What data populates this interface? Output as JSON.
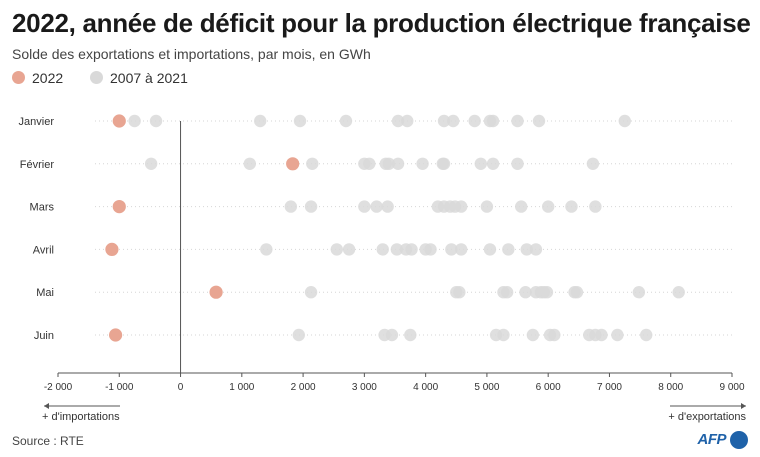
{
  "header": {
    "title": "2022, année de déficit pour la production électrique française",
    "subtitle": "Solde des exportations et importations, par mois, en GWh"
  },
  "legend": {
    "items": [
      {
        "label": "2022",
        "color": "#e8a592"
      },
      {
        "label": "2007 à 2021",
        "color": "#d9d9d9"
      }
    ]
  },
  "footer": {
    "source": "Source : RTE",
    "logo_text": "AFP"
  },
  "chart_data": {
    "type": "scatter",
    "title": "2022, année de déficit pour la production électrique française",
    "subtitle": "Solde des exportations et importations, par mois, en GWh",
    "categories": [
      "Janvier",
      "Février",
      "Mars",
      "Avril",
      "Mai",
      "Juin"
    ],
    "xlim": [
      -2000,
      9000
    ],
    "xticks": [
      -2000,
      -1000,
      0,
      1000,
      2000,
      3000,
      4000,
      5000,
      6000,
      7000,
      8000,
      9000
    ],
    "xtick_labels": [
      "-2 000",
      "-1 000",
      "0",
      "1 000",
      "2 000",
      "3 000",
      "4 000",
      "5 000",
      "6 000",
      "7 000",
      "8 000",
      "9 000"
    ],
    "x_annotation_left": "+ d'importations",
    "x_annotation_right": "+ d'exportations",
    "grid": true,
    "series": [
      {
        "name": "2007 à 2021",
        "color": "#d9d9d9",
        "values": [
          [
            -750,
            -400,
            1300,
            1950,
            2700,
            3550,
            3700,
            4300,
            4450,
            4800,
            5050,
            5100,
            5500,
            5850,
            7250
          ],
          [
            -480,
            1130,
            2150,
            3000,
            3080,
            3350,
            3400,
            3550,
            3950,
            4280,
            4300,
            4900,
            5100,
            5500,
            6730
          ],
          [
            1800,
            2130,
            3000,
            3200,
            3380,
            4200,
            4300,
            4400,
            4480,
            4580,
            5000,
            5560,
            6000,
            6380,
            6770
          ],
          [
            1400,
            2550,
            2750,
            3300,
            3530,
            3680,
            3770,
            4000,
            4080,
            4420,
            4580,
            5050,
            5350,
            5650,
            5800
          ],
          [
            2130,
            4500,
            4550,
            5270,
            5330,
            5630,
            5800,
            5880,
            5930,
            5980,
            6430,
            6470,
            7480,
            8130
          ],
          [
            1930,
            3330,
            3450,
            3750,
            5150,
            5270,
            5750,
            6030,
            6100,
            6670,
            6770,
            6870,
            7130,
            7600
          ]
        ]
      },
      {
        "name": "2022",
        "color": "#e8a592",
        "values": [
          -1000,
          1830,
          -1000,
          -1120,
          580,
          -1060
        ]
      }
    ]
  }
}
